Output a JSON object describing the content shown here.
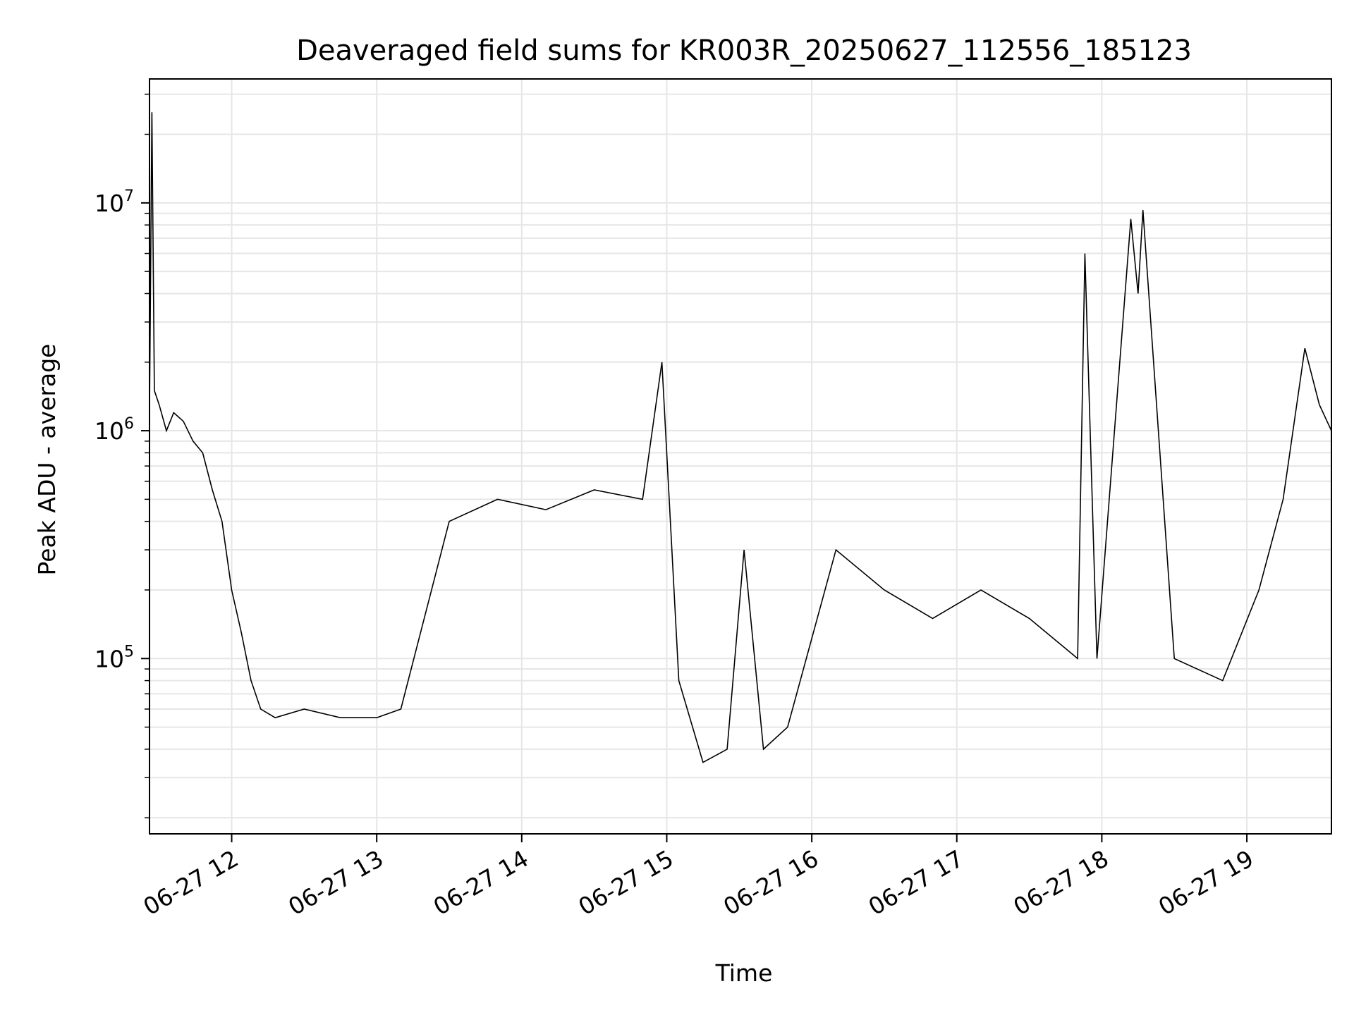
{
  "chart_data": {
    "type": "line",
    "title": "Deaveraged field sums for KR003R_20250627_112556_185123",
    "xlabel": "Time",
    "ylabel": "Peak ADU - average",
    "yscale": "log",
    "ylim": [
      17000,
      35000000
    ],
    "xlim": [
      "2025-06-27 11:26",
      "2025-06-27 19:35"
    ],
    "grid": true,
    "line_color": "#000000",
    "x_ticks": [
      {
        "time": "2025-06-27 12:00",
        "label": "06-27 12"
      },
      {
        "time": "2025-06-27 13:00",
        "label": "06-27 13"
      },
      {
        "time": "2025-06-27 14:00",
        "label": "06-27 14"
      },
      {
        "time": "2025-06-27 15:00",
        "label": "06-27 15"
      },
      {
        "time": "2025-06-27 16:00",
        "label": "06-27 16"
      },
      {
        "time": "2025-06-27 17:00",
        "label": "06-27 17"
      },
      {
        "time": "2025-06-27 18:00",
        "label": "06-27 18"
      },
      {
        "time": "2025-06-27 19:00",
        "label": "06-27 19"
      }
    ],
    "y_ticks": [
      {
        "value": 100000,
        "base": "10",
        "exp": "5"
      },
      {
        "value": 1000000,
        "base": "10",
        "exp": "6"
      },
      {
        "value": 10000000,
        "base": "10",
        "exp": "7"
      }
    ],
    "series": [
      {
        "values": [
          [
            "2025-06-27 11:26",
            1200000
          ],
          [
            "2025-06-27 11:27",
            25000000
          ],
          [
            "2025-06-27 11:28",
            1500000
          ],
          [
            "2025-06-27 11:30",
            1300000
          ],
          [
            "2025-06-27 11:33",
            1000000
          ],
          [
            "2025-06-27 11:36",
            1200000
          ],
          [
            "2025-06-27 11:40",
            1100000
          ],
          [
            "2025-06-27 11:44",
            900000
          ],
          [
            "2025-06-27 11:48",
            800000
          ],
          [
            "2025-06-27 11:52",
            550000
          ],
          [
            "2025-06-27 11:56",
            400000
          ],
          [
            "2025-06-27 12:00",
            200000
          ],
          [
            "2025-06-27 12:04",
            130000
          ],
          [
            "2025-06-27 12:08",
            80000
          ],
          [
            "2025-06-27 12:12",
            60000
          ],
          [
            "2025-06-27 12:18",
            55000
          ],
          [
            "2025-06-27 12:30",
            60000
          ],
          [
            "2025-06-27 12:45",
            55000
          ],
          [
            "2025-06-27 13:00",
            55000
          ],
          [
            "2025-06-27 13:10",
            60000
          ],
          [
            "2025-06-27 13:30",
            400000
          ],
          [
            "2025-06-27 13:50",
            500000
          ],
          [
            "2025-06-27 14:10",
            450000
          ],
          [
            "2025-06-27 14:30",
            550000
          ],
          [
            "2025-06-27 14:50",
            500000
          ],
          [
            "2025-06-27 14:58",
            2000000
          ],
          [
            "2025-06-27 15:05",
            80000
          ],
          [
            "2025-06-27 15:15",
            35000
          ],
          [
            "2025-06-27 15:25",
            40000
          ],
          [
            "2025-06-27 15:32",
            300000
          ],
          [
            "2025-06-27 15:40",
            40000
          ],
          [
            "2025-06-27 15:50",
            50000
          ],
          [
            "2025-06-27 16:10",
            300000
          ],
          [
            "2025-06-27 16:30",
            200000
          ],
          [
            "2025-06-27 16:50",
            150000
          ],
          [
            "2025-06-27 17:10",
            200000
          ],
          [
            "2025-06-27 17:30",
            150000
          ],
          [
            "2025-06-27 17:50",
            100000
          ],
          [
            "2025-06-27 17:53",
            6000000
          ],
          [
            "2025-06-27 17:58",
            100000
          ],
          [
            "2025-06-27 18:12",
            8500000
          ],
          [
            "2025-06-27 18:15",
            4000000
          ],
          [
            "2025-06-27 18:17",
            9300000
          ],
          [
            "2025-06-27 18:30",
            100000
          ],
          [
            "2025-06-27 18:50",
            80000
          ],
          [
            "2025-06-27 19:05",
            200000
          ],
          [
            "2025-06-27 19:15",
            500000
          ],
          [
            "2025-06-27 19:24",
            2300000
          ],
          [
            "2025-06-27 19:30",
            1300000
          ],
          [
            "2025-06-27 19:35",
            1000000
          ]
        ]
      }
    ]
  }
}
